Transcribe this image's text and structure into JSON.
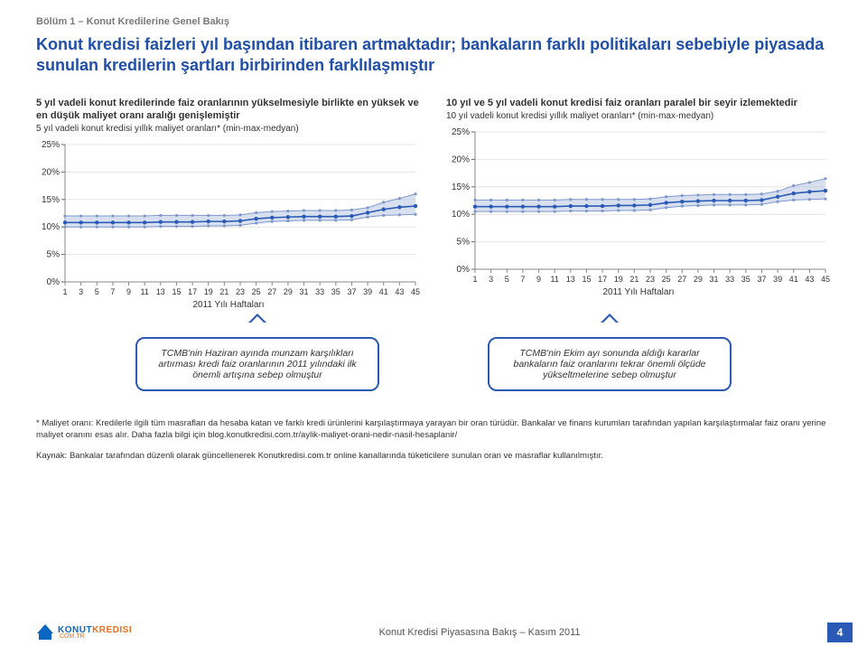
{
  "sectionLabel": "Bölüm 1 – Konut Kredilerine Genel Bakış",
  "title": "Konut kredisi faizleri yıl başından itibaren artmaktadır; bankaların farklı politikaları sebebiyle piyasada sunulan kredilerin şartları birbirinden farklılaşmıştır",
  "chartLeft": {
    "headerLine1": "5 yıl vadeli konut kredilerinde faiz oranlarının yükselmesiyle birlikte en yüksek ve en düşük maliyet oranı aralığı genişlemiştir",
    "sub": "5 yıl vadeli konut kredisi yıllık maliyet oranları* (min-max-medyan)",
    "xAxisLabel": "2011 Yılı Haftaları",
    "type": "range-line",
    "ylim": [
      0,
      25
    ],
    "ytickStep": 5,
    "xTicks": [
      1,
      3,
      5,
      7,
      9,
      11,
      13,
      15,
      17,
      19,
      21,
      23,
      25,
      27,
      29,
      31,
      33,
      35,
      37,
      39,
      41,
      43,
      45
    ],
    "colors": {
      "range": "#b8c6e2",
      "median": "#2a5ab5",
      "grid": "#e4e4e4",
      "text": "#333333"
    },
    "series": {
      "max": [
        12.0,
        12.0,
        12.0,
        12.0,
        12.0,
        12.0,
        12.1,
        12.1,
        12.1,
        12.1,
        12.1,
        12.2,
        12.6,
        12.8,
        12.9,
        13.0,
        13.0,
        13.0,
        13.1,
        13.5,
        14.5,
        15.2,
        16.0
      ],
      "median": [
        10.8,
        10.8,
        10.8,
        10.8,
        10.8,
        10.8,
        10.9,
        10.9,
        10.9,
        11.0,
        11.0,
        11.1,
        11.5,
        11.7,
        11.8,
        11.9,
        11.9,
        11.9,
        12.0,
        12.6,
        13.2,
        13.6,
        13.8
      ],
      "min": [
        10.0,
        10.0,
        10.0,
        10.0,
        10.0,
        10.0,
        10.1,
        10.1,
        10.1,
        10.2,
        10.2,
        10.3,
        10.7,
        11.0,
        11.1,
        11.2,
        11.2,
        11.2,
        11.3,
        11.8,
        12.1,
        12.2,
        12.3
      ]
    }
  },
  "chartRight": {
    "headerLine1": "10 yıl ve 5 yıl vadeli konut kredisi faiz oranları paralel bir seyir izlemektedir",
    "sub": "10 yıl vadeli konut kredisi yıllık maliyet oranları* (min-max-medyan)",
    "xAxisLabel": "2011 Yılı Haftaları",
    "type": "range-line",
    "ylim": [
      0,
      25
    ],
    "ytickStep": 5,
    "xTicks": [
      1,
      3,
      5,
      7,
      9,
      11,
      13,
      15,
      17,
      19,
      21,
      23,
      25,
      27,
      29,
      31,
      33,
      35,
      37,
      39,
      41,
      43,
      45
    ],
    "colors": {
      "range": "#b8c6e2",
      "median": "#2a5ab5",
      "grid": "#e4e4e4",
      "text": "#333333"
    },
    "series": {
      "max": [
        12.6,
        12.6,
        12.6,
        12.6,
        12.6,
        12.6,
        12.7,
        12.7,
        12.7,
        12.7,
        12.7,
        12.8,
        13.2,
        13.4,
        13.5,
        13.6,
        13.6,
        13.6,
        13.7,
        14.2,
        15.2,
        15.8,
        16.5
      ],
      "median": [
        11.4,
        11.4,
        11.4,
        11.4,
        11.4,
        11.4,
        11.5,
        11.5,
        11.5,
        11.6,
        11.6,
        11.7,
        12.1,
        12.3,
        12.4,
        12.5,
        12.5,
        12.5,
        12.6,
        13.2,
        13.8,
        14.1,
        14.3
      ],
      "min": [
        10.5,
        10.5,
        10.5,
        10.5,
        10.5,
        10.5,
        10.6,
        10.6,
        10.6,
        10.7,
        10.7,
        10.8,
        11.2,
        11.5,
        11.6,
        11.7,
        11.7,
        11.7,
        11.8,
        12.3,
        12.6,
        12.7,
        12.8
      ]
    }
  },
  "calloutLeft": "TCMB'nin Haziran ayında munzam karşılıkları artırması kredi faiz oranlarının 2011 yılındaki ilk önemli artışına sebep olmuştur",
  "calloutRight": "TCMB'nin Ekim ayı sonunda aldığı kararlar bankaların faiz oranlarını tekrar önemli ölçüde yükseltmelerine sebep olmuştur",
  "footnote": "* Maliyet oranı: Kredilerle ilgili tüm masrafları da hesaba katan ve farklı kredi ürünlerini karşılaştırmaya yarayan bir oran türüdür. Bankalar ve finans kurumları tarafından yapılan karşılaştırmalar faiz oranı yerine maliyet oranını esas alır. Daha fazla bilgi için blog.konutkredisi.com.tr/aylik-maliyet-orani-nedir-nasil-hesaplanir/",
  "source": "Kaynak: Bankalar tarafından düzenli olarak güncellenerek Konutkredisi.com.tr online kanallarında tüketicilere sunulan oran ve masraflar kullanılmıştır.",
  "footer": {
    "logoText1": "KONUT",
    "logoText2": "KREDISI",
    "logoSub": ".COM.TR",
    "centerText": "Konut Kredisi Piyasasına Bakış – Kasım 2011",
    "pageNum": "4"
  }
}
